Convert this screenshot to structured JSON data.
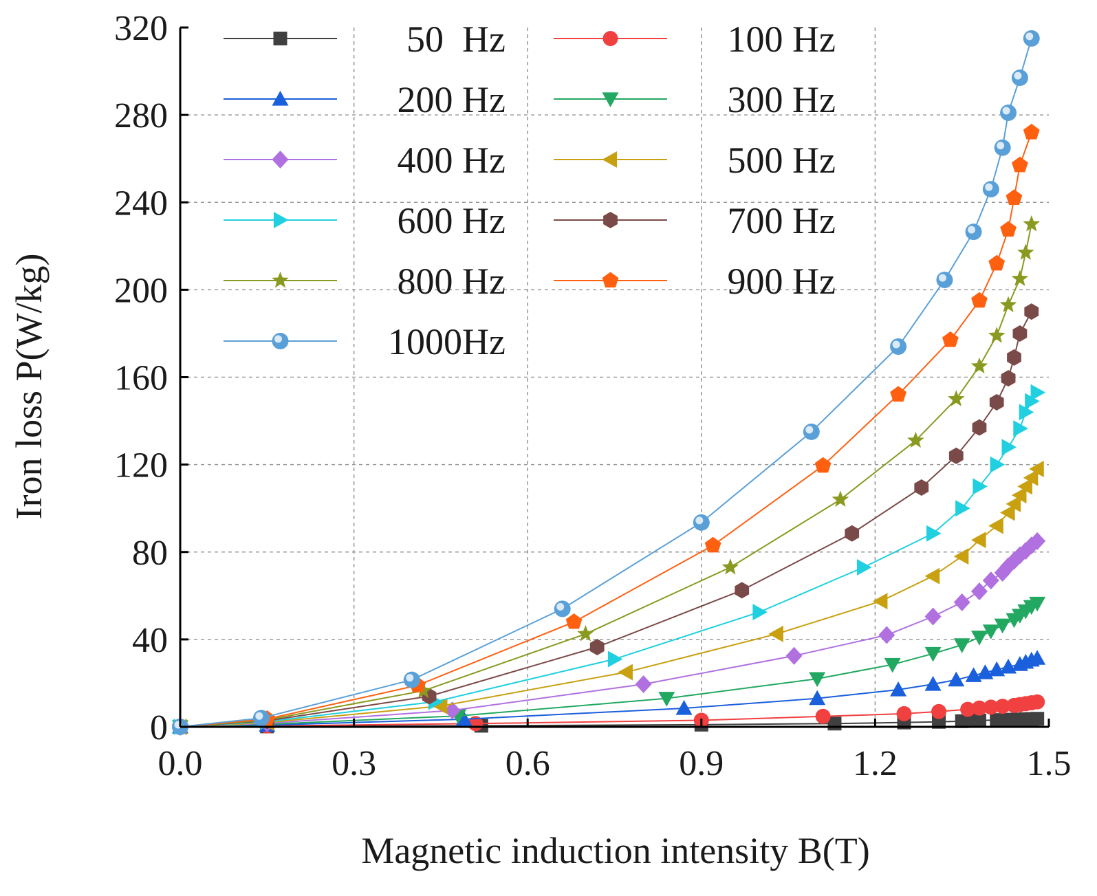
{
  "chart_data": {
    "type": "line",
    "title": "",
    "xlabel": "Magnetic induction intensity B(T)",
    "ylabel": "Iron loss P(W/kg)",
    "xlim": [
      0.0,
      1.5
    ],
    "ylim": [
      0,
      320
    ],
    "xticks": [
      "0.0",
      "0.3",
      "0.6",
      "0.9",
      "1.2",
      "1.5"
    ],
    "yticks": [
      "0",
      "40",
      "80",
      "120",
      "160",
      "200",
      "240",
      "280",
      "320"
    ],
    "grid": true,
    "legend_position": "top-left",
    "series": [
      {
        "name": "50  Hz",
        "color": "#404040",
        "marker": "square",
        "x": [
          0.0,
          0.15,
          0.52,
          0.9,
          1.13,
          1.25,
          1.31,
          1.35,
          1.37,
          1.38,
          1.41,
          1.43,
          1.44,
          1.45,
          1.46,
          1.47,
          1.48
        ],
        "y": [
          0,
          0.2,
          0.5,
          1.0,
          1.5,
          2.0,
          2.3,
          2.6,
          2.8,
          2.9,
          3.1,
          3.2,
          3.3,
          3.4,
          3.5,
          3.6,
          3.7
        ]
      },
      {
        "name": "100 Hz",
        "color": "#f04040",
        "marker": "circle",
        "x": [
          0.0,
          0.15,
          0.51,
          0.9,
          1.11,
          1.25,
          1.31,
          1.36,
          1.38,
          1.4,
          1.42,
          1.44,
          1.45,
          1.46,
          1.47,
          1.48
        ],
        "y": [
          0,
          0.4,
          1.5,
          3.0,
          4.8,
          6.0,
          7.0,
          8.0,
          8.6,
          9.0,
          9.4,
          9.8,
          10.2,
          10.6,
          11.0,
          11.4
        ]
      },
      {
        "name": "200 Hz",
        "color": "#1a5fdc",
        "marker": "triangle-up",
        "x": [
          0.0,
          0.15,
          0.49,
          0.87,
          1.1,
          1.24,
          1.3,
          1.34,
          1.37,
          1.39,
          1.41,
          1.43,
          1.45,
          1.46,
          1.47,
          1.48
        ],
        "y": [
          0,
          0.8,
          3.5,
          8.5,
          13.0,
          17.0,
          19.5,
          21.5,
          23.5,
          24.8,
          26.2,
          27.4,
          28.6,
          29.6,
          30.6,
          31.4
        ]
      },
      {
        "name": "300 Hz",
        "color": "#22a860",
        "marker": "triangle-down",
        "x": [
          0.0,
          0.15,
          0.48,
          0.84,
          1.1,
          1.23,
          1.3,
          1.35,
          1.38,
          1.4,
          1.42,
          1.44,
          1.45,
          1.46,
          1.47,
          1.48
        ],
        "y": [
          0,
          1.2,
          5.0,
          13.0,
          22.0,
          28.5,
          33.5,
          37.5,
          41.0,
          43.8,
          46.5,
          49.0,
          51.0,
          53.0,
          55.0,
          56.5
        ]
      },
      {
        "name": "400 Hz",
        "color": "#b070e0",
        "marker": "diamond",
        "x": [
          0.0,
          0.15,
          0.47,
          0.8,
          1.06,
          1.22,
          1.3,
          1.35,
          1.38,
          1.4,
          1.42,
          1.43,
          1.44,
          1.45,
          1.46,
          1.47,
          1.48
        ],
        "y": [
          0,
          1.6,
          7.5,
          19.5,
          32.5,
          42.0,
          50.5,
          57.0,
          62.0,
          67.0,
          70.5,
          73.5,
          76.0,
          78.5,
          80.5,
          83.0,
          85.0
        ]
      },
      {
        "name": "500 Hz",
        "color": "#c8a010",
        "marker": "triangle-left",
        "x": [
          0.0,
          0.15,
          0.45,
          0.77,
          1.03,
          1.21,
          1.3,
          1.35,
          1.38,
          1.41,
          1.43,
          1.44,
          1.45,
          1.46,
          1.47,
          1.48
        ],
        "y": [
          0,
          2.0,
          9.5,
          25.0,
          42.5,
          57.5,
          69.0,
          78.0,
          85.5,
          92.0,
          98.0,
          102.0,
          106.0,
          110.0,
          114.0,
          118.0
        ]
      },
      {
        "name": "600 Hz",
        "color": "#20d0e0",
        "marker": "triangle-right",
        "x": [
          0.0,
          0.15,
          0.44,
          0.75,
          1.0,
          1.18,
          1.3,
          1.35,
          1.38,
          1.41,
          1.43,
          1.45,
          1.46,
          1.47,
          1.48
        ],
        "y": [
          0,
          2.4,
          11.5,
          31.0,
          52.5,
          73.0,
          88.5,
          100.0,
          110.0,
          120.0,
          128.0,
          136.5,
          144.0,
          149.0,
          153.0
        ]
      },
      {
        "name": "700 Hz",
        "color": "#7a4a48",
        "marker": "hexagon",
        "x": [
          0.0,
          0.15,
          0.43,
          0.72,
          0.97,
          1.16,
          1.28,
          1.34,
          1.38,
          1.41,
          1.43,
          1.44,
          1.45,
          1.47
        ],
        "y": [
          0,
          2.8,
          14.0,
          36.5,
          62.5,
          88.5,
          109.5,
          124.0,
          137.0,
          148.5,
          159.5,
          169.0,
          180.0,
          190.0
        ]
      },
      {
        "name": "800 Hz",
        "color": "#8a9a20",
        "marker": "star",
        "x": [
          0.0,
          0.15,
          0.42,
          0.7,
          0.95,
          1.14,
          1.27,
          1.34,
          1.38,
          1.41,
          1.43,
          1.45,
          1.46,
          1.47
        ],
        "y": [
          0,
          3.2,
          16.5,
          42.5,
          73.0,
          104.0,
          131.0,
          150.0,
          165.0,
          179.0,
          193.0,
          205.0,
          217.0,
          230.0
        ]
      },
      {
        "name": "900 Hz",
        "color": "#ff6010",
        "marker": "pentagon",
        "x": [
          0.0,
          0.15,
          0.41,
          0.68,
          0.92,
          1.11,
          1.24,
          1.33,
          1.38,
          1.41,
          1.43,
          1.44,
          1.45,
          1.47
        ],
        "y": [
          0,
          3.6,
          19.0,
          48.0,
          83.0,
          119.5,
          152.0,
          177.0,
          195.0,
          212.0,
          227.5,
          242.0,
          257.0,
          272.0
        ]
      },
      {
        "name": "1000Hz",
        "color": "#5aa0d8",
        "marker": "sphere",
        "x": [
          0.0,
          0.14,
          0.4,
          0.66,
          0.9,
          1.09,
          1.24,
          1.32,
          1.37,
          1.4,
          1.42,
          1.43,
          1.45,
          1.47
        ],
        "y": [
          0,
          4.0,
          21.5,
          54.0,
          93.5,
          135.0,
          174.0,
          204.5,
          226.5,
          246.0,
          265.0,
          281.0,
          297.0,
          315.0
        ]
      }
    ]
  }
}
